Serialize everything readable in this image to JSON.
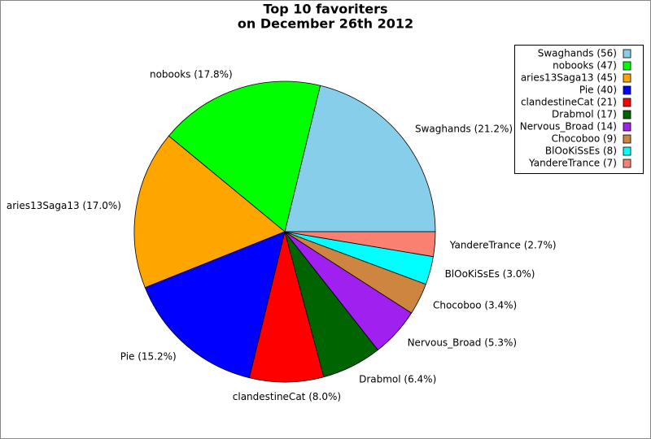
{
  "chart_data": {
    "type": "pie",
    "title": [
      "Top 10 favoriters",
      "on December 26th 2012"
    ],
    "categories": [
      "Swaghands (56)",
      "nobooks (47)",
      "aries13Saga13 (45)",
      "Pie (40)",
      "clandestineCat (21)",
      "Drabmol (17)",
      "Nervous_Broad (14)",
      "Chocoboo (9)",
      "BlOoKiSsEs (8)",
      "YandereTrance (7)"
    ],
    "values": [
      56,
      47,
      45,
      40,
      21,
      17,
      14,
      9,
      8,
      7
    ],
    "slice_labels": [
      "Swaghands (21.2%)",
      "nobooks (17.8%)",
      "aries13Saga13 (17.0%)",
      "Pie (15.2%)",
      "clandestineCat (8.0%)",
      "Drabmol (6.4%)",
      "Nervous_Broad (5.3%)",
      "Chocoboo (3.4%)",
      "BlOoKiSsEs (3.0%)",
      "YandereTrance (2.7%)"
    ],
    "colors": [
      "#87ceeb",
      "#00ff00",
      "#ffa500",
      "#0000ff",
      "#ff0000",
      "#006400",
      "#a020f0",
      "#cd853f",
      "#00ffff",
      "#fa8072"
    ],
    "legend": "upper right"
  }
}
